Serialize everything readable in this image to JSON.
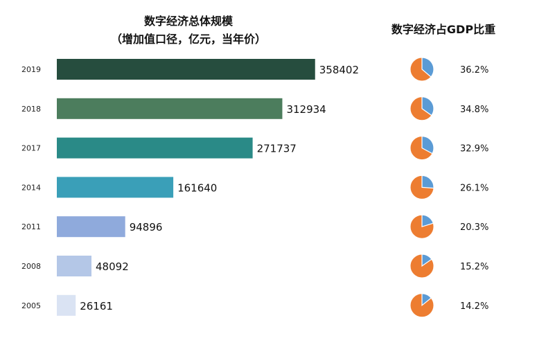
{
  "chart_data": [
    {
      "type": "bar",
      "orientation": "horizontal",
      "title": "数字经济总体规模",
      "subtitle": "（增加值口径，亿元，当年价）",
      "categories": [
        "2019",
        "2018",
        "2017",
        "2014",
        "2011",
        "2008",
        "2005"
      ],
      "values": [
        358402,
        312934,
        271737,
        161640,
        94896,
        48092,
        26161
      ],
      "value_labels": [
        "358402",
        "312934",
        "271737",
        "161640",
        "94896",
        "48092",
        "26161"
      ],
      "xlim": [
        0,
        375000
      ],
      "colors": [
        "#264d3e",
        "#4c7d5d",
        "#2a8a87",
        "#3a9fb8",
        "#8faadc",
        "#b4c7e7",
        "#dae3f3"
      ],
      "grid": false,
      "legend": "none"
    },
    {
      "type": "pie",
      "title": "数字经济占GDP比重",
      "categories": [
        "2019",
        "2018",
        "2017",
        "2014",
        "2011",
        "2008",
        "2005"
      ],
      "values": [
        36.2,
        34.8,
        32.9,
        26.1,
        20.3,
        15.2,
        14.2
      ],
      "value_labels": [
        "36.2%",
        "34.8%",
        "32.9%",
        "26.1%",
        "20.3%",
        "15.2%",
        "14.2%"
      ],
      "slice_colors": {
        "share": "#5b9bd5",
        "rest": "#ed7d31"
      }
    }
  ]
}
